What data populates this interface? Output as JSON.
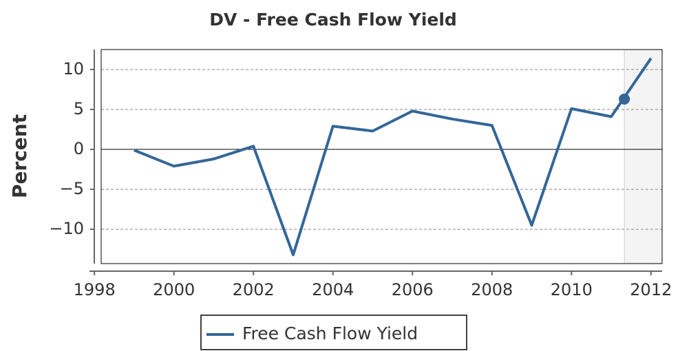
{
  "chart_data": {
    "type": "line",
    "title": "DV - Free Cash Flow Yield",
    "y_label": "Percent",
    "x": [
      1999,
      2000,
      2001,
      2002,
      2003,
      2004,
      2005,
      2006,
      2007,
      2008,
      2009,
      2010,
      2011,
      2012
    ],
    "series": [
      {
        "name": "Free Cash Flow Yield",
        "color": "#336699",
        "values": [
          -0.1,
          -2.1,
          -1.2,
          0.4,
          -13.2,
          2.9,
          2.3,
          4.8,
          3.8,
          3.0,
          -9.5,
          5.1,
          4.1,
          11.4
        ]
      }
    ],
    "marker": {
      "x": 2011.33,
      "y": 6.3
    },
    "xlim": [
      1998.17,
      2012.28
    ],
    "xticks": [
      1998,
      2000,
      2002,
      2004,
      2006,
      2008,
      2010,
      2012
    ],
    "ylim": [
      -14.3,
      12.5
    ],
    "yticks": [
      {
        "value": -10,
        "label": "−10"
      },
      {
        "value": -5,
        "label": "−5"
      },
      0,
      5,
      10
    ],
    "grid": true
  }
}
